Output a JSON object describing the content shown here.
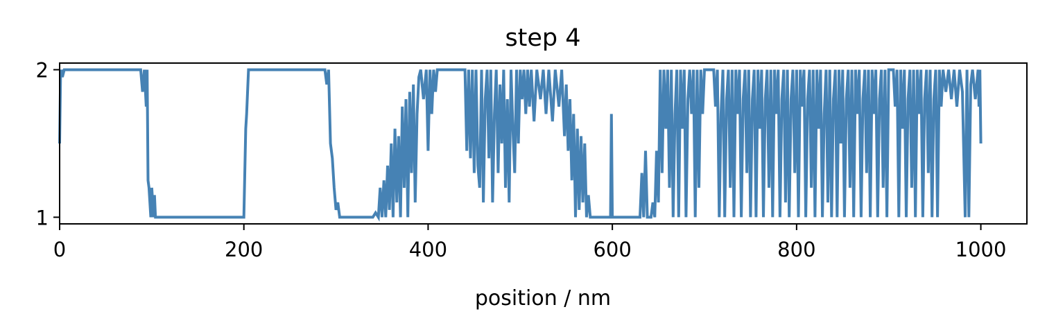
{
  "chart_data": {
    "type": "line",
    "title": "step 4",
    "xlabel": "position / nm",
    "ylabel": "",
    "xlim": [
      0,
      1050
    ],
    "ylim": [
      0.955,
      2.045
    ],
    "x_ticks": [
      "0",
      "200",
      "400",
      "600",
      "800",
      "1000"
    ],
    "y_ticks": [
      "1",
      "2"
    ],
    "grid": false,
    "legend": "none",
    "line_color": "#4682b4",
    "series": [
      {
        "name": "",
        "points": [
          [
            0,
            1.5
          ],
          [
            1,
            1.95
          ],
          [
            2,
            2
          ],
          [
            3,
            1.95
          ],
          [
            5,
            2
          ],
          [
            88,
            2
          ],
          [
            90,
            1.85
          ],
          [
            92,
            2
          ],
          [
            94,
            1.75
          ],
          [
            95,
            2
          ],
          [
            96,
            1.25
          ],
          [
            97,
            1.2
          ],
          [
            98,
            1.1
          ],
          [
            99,
            1
          ],
          [
            100,
            1.2
          ],
          [
            102,
            1
          ],
          [
            103,
            1.15
          ],
          [
            104,
            1
          ],
          [
            200,
            1
          ],
          [
            202,
            1.6
          ],
          [
            203,
            1.7
          ],
          [
            205,
            2
          ],
          [
            288,
            2
          ],
          [
            290,
            1.9
          ],
          [
            292,
            2
          ],
          [
            294,
            1.5
          ],
          [
            296,
            1.4
          ],
          [
            298,
            1.2
          ],
          [
            300,
            1.05
          ],
          [
            302,
            1.1
          ],
          [
            304,
            1
          ],
          [
            340,
            1
          ],
          [
            343,
            1.03
          ],
          [
            346,
            1
          ],
          [
            348,
            1.2
          ],
          [
            350,
            1
          ],
          [
            352,
            1.25
          ],
          [
            354,
            1
          ],
          [
            356,
            1.35
          ],
          [
            358,
            1.05
          ],
          [
            360,
            1.5
          ],
          [
            362,
            1
          ],
          [
            364,
            1.6
          ],
          [
            366,
            1.1
          ],
          [
            368,
            1.55
          ],
          [
            370,
            1
          ],
          [
            372,
            1.75
          ],
          [
            374,
            1.2
          ],
          [
            376,
            1.8
          ],
          [
            378,
            1
          ],
          [
            380,
            1.85
          ],
          [
            382,
            1.3
          ],
          [
            384,
            1.9
          ],
          [
            386,
            1.1
          ],
          [
            388,
            1.7
          ],
          [
            390,
            1.95
          ],
          [
            392,
            2
          ],
          [
            395,
            1.8
          ],
          [
            398,
            2
          ],
          [
            400,
            1.45
          ],
          [
            402,
            2
          ],
          [
            404,
            1.7
          ],
          [
            406,
            2
          ],
          [
            408,
            1.85
          ],
          [
            410,
            2
          ],
          [
            440,
            2
          ],
          [
            442,
            1.45
          ],
          [
            444,
            2
          ],
          [
            446,
            1.4
          ],
          [
            448,
            2
          ],
          [
            450,
            1.3
          ],
          [
            452,
            2
          ],
          [
            454,
            1.35
          ],
          [
            456,
            1.2
          ],
          [
            458,
            2
          ],
          [
            460,
            1.1
          ],
          [
            462,
            1.8
          ],
          [
            464,
            2
          ],
          [
            466,
            1.4
          ],
          [
            468,
            2
          ],
          [
            470,
            1.1
          ],
          [
            472,
            1.7
          ],
          [
            474,
            2
          ],
          [
            476,
            1.3
          ],
          [
            478,
            1.9
          ],
          [
            480,
            1.5
          ],
          [
            482,
            2
          ],
          [
            484,
            1.2
          ],
          [
            486,
            1.8
          ],
          [
            488,
            1.1
          ],
          [
            490,
            2
          ],
          [
            492,
            1.6
          ],
          [
            494,
            1.3
          ],
          [
            496,
            2
          ],
          [
            498,
            1.5
          ],
          [
            500,
            2
          ],
          [
            502,
            1.8
          ],
          [
            504,
            2
          ],
          [
            506,
            1.7
          ],
          [
            508,
            2
          ],
          [
            510,
            1.75
          ],
          [
            512,
            2
          ],
          [
            515,
            1.65
          ],
          [
            518,
            2
          ],
          [
            522,
            1.8
          ],
          [
            525,
            2
          ],
          [
            528,
            1.7
          ],
          [
            531,
            2
          ],
          [
            535,
            1.65
          ],
          [
            538,
            2
          ],
          [
            542,
            1.75
          ],
          [
            545,
            2
          ],
          [
            548,
            1.55
          ],
          [
            550,
            1.9
          ],
          [
            552,
            1.45
          ],
          [
            554,
            1.8
          ],
          [
            556,
            1.25
          ],
          [
            558,
            1.7
          ],
          [
            560,
            1
          ],
          [
            562,
            1.6
          ],
          [
            564,
            1.05
          ],
          [
            566,
            1.55
          ],
          [
            568,
            1.1
          ],
          [
            570,
            1.5
          ],
          [
            572,
            1
          ],
          [
            574,
            1.15
          ],
          [
            576,
            1
          ],
          [
            580,
            1
          ],
          [
            598,
            1
          ],
          [
            599,
            1.7
          ],
          [
            600,
            1
          ],
          [
            630,
            1
          ],
          [
            632,
            1.3
          ],
          [
            634,
            1
          ],
          [
            636,
            1.45
          ],
          [
            638,
            1
          ],
          [
            642,
            1
          ],
          [
            644,
            1.1
          ],
          [
            646,
            1
          ],
          [
            648,
            1.45
          ],
          [
            650,
            1.1
          ],
          [
            652,
            2
          ],
          [
            654,
            1.3
          ],
          [
            656,
            2
          ],
          [
            658,
            1.6
          ],
          [
            660,
            2
          ],
          [
            662,
            1.2
          ],
          [
            664,
            2
          ],
          [
            666,
            1.0
          ],
          [
            668,
            1.7
          ],
          [
            670,
            2
          ],
          [
            672,
            1.0
          ],
          [
            674,
            2
          ],
          [
            676,
            1.6
          ],
          [
            678,
            2
          ],
          [
            680,
            1.0
          ],
          [
            682,
            1.8
          ],
          [
            684,
            2
          ],
          [
            686,
            1.7
          ],
          [
            688,
            2
          ],
          [
            690,
            1.0
          ],
          [
            692,
            2
          ],
          [
            694,
            1.2
          ],
          [
            696,
            2
          ],
          [
            698,
            1.7
          ],
          [
            700,
            2
          ],
          [
            710,
            2
          ],
          [
            712,
            1.75
          ],
          [
            714,
            2
          ],
          [
            716,
            1.0
          ],
          [
            718,
            1.7
          ],
          [
            720,
            2
          ],
          [
            722,
            1.0
          ],
          [
            724,
            1.8
          ],
          [
            726,
            2
          ],
          [
            728,
            1.2
          ],
          [
            730,
            2
          ],
          [
            732,
            1.0
          ],
          [
            734,
            2
          ],
          [
            736,
            1.7
          ],
          [
            738,
            2
          ],
          [
            740,
            1.0
          ],
          [
            742,
            1.8
          ],
          [
            744,
            2
          ],
          [
            746,
            1.3
          ],
          [
            748,
            2
          ],
          [
            750,
            1.0
          ],
          [
            752,
            1.8
          ],
          [
            754,
            2
          ],
          [
            756,
            1.0
          ],
          [
            758,
            2
          ],
          [
            760,
            1.6
          ],
          [
            762,
            2
          ],
          [
            764,
            1.0
          ],
          [
            766,
            1.8
          ],
          [
            768,
            2
          ],
          [
            770,
            1.2
          ],
          [
            772,
            2
          ],
          [
            774,
            1.0
          ],
          [
            776,
            2
          ],
          [
            778,
            1.7
          ],
          [
            780,
            2
          ],
          [
            782,
            1.0
          ],
          [
            784,
            1.8
          ],
          [
            786,
            2
          ],
          [
            788,
            1.1
          ],
          [
            790,
            2
          ],
          [
            792,
            1.0
          ],
          [
            794,
            1.8
          ],
          [
            796,
            2
          ],
          [
            798,
            1.3
          ],
          [
            800,
            2
          ],
          [
            802,
            1.0
          ],
          [
            804,
            2
          ],
          [
            806,
            1.75
          ],
          [
            808,
            2
          ],
          [
            810,
            1.0
          ],
          [
            812,
            1.8
          ],
          [
            814,
            2
          ],
          [
            816,
            1.2
          ],
          [
            818,
            2
          ],
          [
            820,
            1.0
          ],
          [
            822,
            2
          ],
          [
            824,
            1.6
          ],
          [
            826,
            2
          ],
          [
            828,
            1.0
          ],
          [
            830,
            1.7
          ],
          [
            832,
            2
          ],
          [
            834,
            1.1
          ],
          [
            836,
            2
          ],
          [
            838,
            1.0
          ],
          [
            840,
            1.8
          ],
          [
            842,
            2
          ],
          [
            844,
            1.0
          ],
          [
            846,
            2
          ],
          [
            848,
            1.5
          ],
          [
            850,
            2
          ],
          [
            852,
            1.0
          ],
          [
            854,
            1.8
          ],
          [
            856,
            2
          ],
          [
            858,
            1.2
          ],
          [
            860,
            2
          ],
          [
            862,
            1.0
          ],
          [
            864,
            2
          ],
          [
            866,
            1.7
          ],
          [
            868,
            2
          ],
          [
            870,
            1.0
          ],
          [
            872,
            1.8
          ],
          [
            874,
            2
          ],
          [
            876,
            1.3
          ],
          [
            878,
            2
          ],
          [
            880,
            1.0
          ],
          [
            882,
            2
          ],
          [
            884,
            1.7
          ],
          [
            886,
            2
          ],
          [
            888,
            1.0
          ],
          [
            890,
            1.8
          ],
          [
            892,
            2
          ],
          [
            894,
            1.2
          ],
          [
            896,
            2
          ],
          [
            898,
            1.0
          ],
          [
            900,
            2
          ],
          [
            905,
            2
          ],
          [
            907,
            1.75
          ],
          [
            909,
            2
          ],
          [
            911,
            1.0
          ],
          [
            913,
            2
          ],
          [
            915,
            1.6
          ],
          [
            917,
            2
          ],
          [
            919,
            1.0
          ],
          [
            921,
            1.8
          ],
          [
            923,
            2
          ],
          [
            925,
            1.2
          ],
          [
            927,
            2
          ],
          [
            929,
            1.0
          ],
          [
            931,
            2
          ],
          [
            933,
            1.7
          ],
          [
            935,
            2
          ],
          [
            937,
            1.0
          ],
          [
            939,
            1.8
          ],
          [
            941,
            2
          ],
          [
            943,
            1.3
          ],
          [
            945,
            2
          ],
          [
            947,
            1.0
          ],
          [
            949,
            1.8
          ],
          [
            951,
            2
          ],
          [
            953,
            1.0
          ],
          [
            955,
            2
          ],
          [
            957,
            1.75
          ],
          [
            959,
            2
          ],
          [
            962,
            1.85
          ],
          [
            965,
            2
          ],
          [
            968,
            1.8
          ],
          [
            971,
            2
          ],
          [
            974,
            1.75
          ],
          [
            977,
            2
          ],
          [
            980,
            1.85
          ],
          [
            983,
            1.0
          ],
          [
            985,
            2
          ],
          [
            987,
            1.0
          ],
          [
            989,
            1.9
          ],
          [
            991,
            2
          ],
          [
            994,
            1.8
          ],
          [
            997,
            2
          ],
          [
            998,
            1.75
          ],
          [
            999,
            2
          ],
          [
            1000,
            1.5
          ]
        ]
      }
    ]
  }
}
